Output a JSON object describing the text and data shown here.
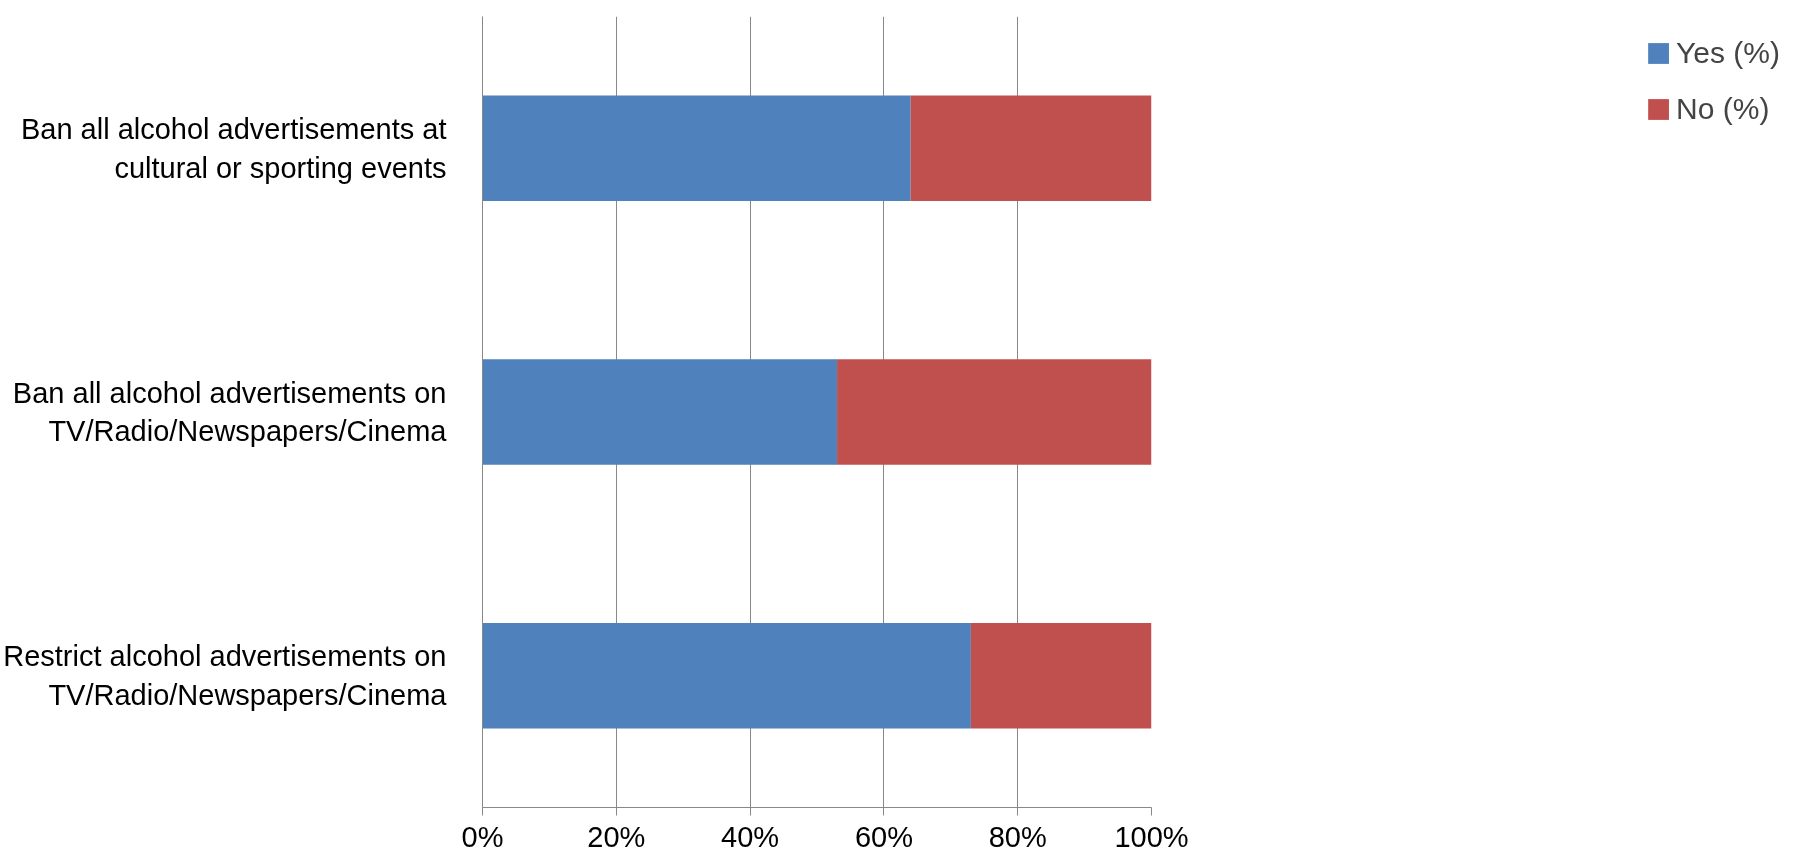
{
  "chart_data": {
    "type": "bar",
    "orientation": "horizontal",
    "stacked": true,
    "categories": [
      "Ban all alcohol advertisements at cultural or sporting events",
      "Ban all alcohol advertisements on TV/Radio/Newspapers/Cinema",
      "Restrict alcohol advertisements on TV/Radio/Newspapers/Cinema"
    ],
    "series": [
      {
        "name": "Yes (%)",
        "color": "#4f81bd",
        "values": [
          64,
          53,
          73
        ]
      },
      {
        "name": "No (%)",
        "color": "#c0504d",
        "values": [
          36,
          47,
          27
        ]
      }
    ],
    "xlim": [
      0,
      100
    ],
    "xticks": [
      {
        "value": 0,
        "label": "0%"
      },
      {
        "value": 20,
        "label": "20%"
      },
      {
        "value": 40,
        "label": "40%"
      },
      {
        "value": 60,
        "label": "60%"
      },
      {
        "value": 80,
        "label": "80%"
      },
      {
        "value": 100,
        "label": "100%"
      }
    ],
    "grid": "x",
    "legend": "right"
  }
}
